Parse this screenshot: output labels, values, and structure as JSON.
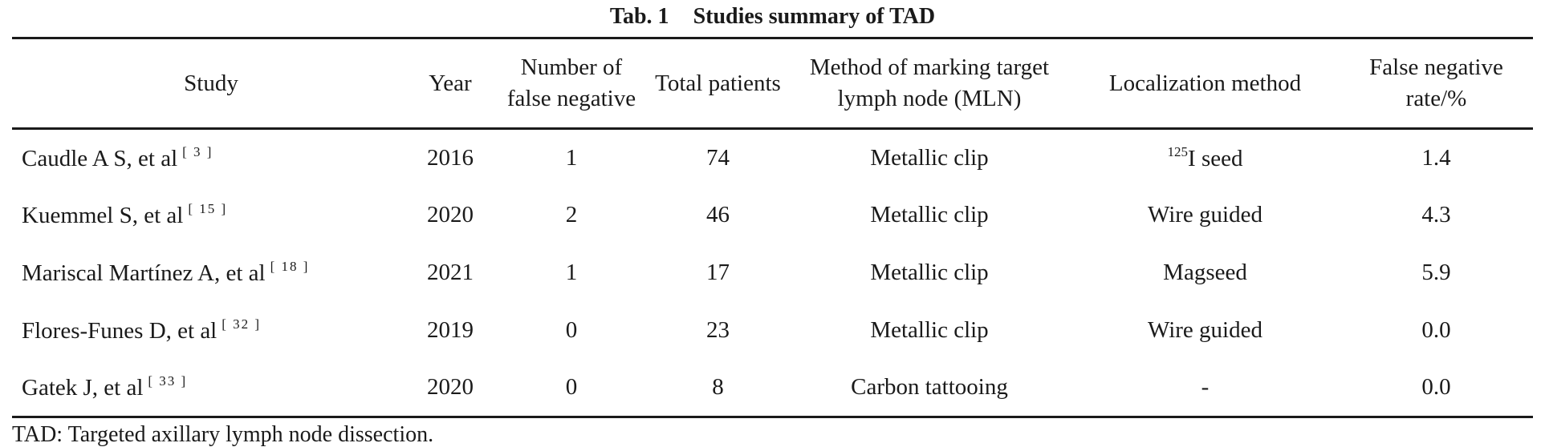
{
  "table_title": {
    "number": "Tab. 1",
    "text": "Studies summary of TAD"
  },
  "columns": [
    "Study",
    "Year",
    "Number of false negative",
    "Total patients",
    "Method of marking target lymph node (MLN)",
    "Localization method",
    "False negative rate/%"
  ],
  "rows": [
    {
      "study": "Caudle A S, et al",
      "ref": "[ 3 ]",
      "year": "2016",
      "false_negative": "1",
      "total": "74",
      "marking": "Metallic clip",
      "loc_sup": "125",
      "localization": "I seed",
      "rate": "1.4"
    },
    {
      "study": "Kuemmel S, et al",
      "ref": "[ 15 ]",
      "year": "2020",
      "false_negative": "2",
      "total": "46",
      "marking": "Metallic clip",
      "loc_sup": "",
      "localization": "Wire guided",
      "rate": "4.3"
    },
    {
      "study": "Mariscal Martínez A, et al",
      "ref": "[ 18 ]",
      "year": "2021",
      "false_negative": "1",
      "total": "17",
      "marking": "Metallic clip",
      "loc_sup": "",
      "localization": "Magseed",
      "rate": "5.9"
    },
    {
      "study": "Flores-Funes D, et al",
      "ref": "[ 32 ]",
      "year": "2019",
      "false_negative": "0",
      "total": "23",
      "marking": "Metallic clip",
      "loc_sup": "",
      "localization": "Wire guided",
      "rate": "0.0"
    },
    {
      "study": "Gatek J, et al",
      "ref": "[ 33 ]",
      "year": "2020",
      "false_negative": "0",
      "total": "8",
      "marking": "Carbon tattooing",
      "loc_sup": "",
      "localization": "-",
      "rate": "0.0"
    }
  ],
  "footnote": "TAD: Targeted axillary lymph node dissection."
}
